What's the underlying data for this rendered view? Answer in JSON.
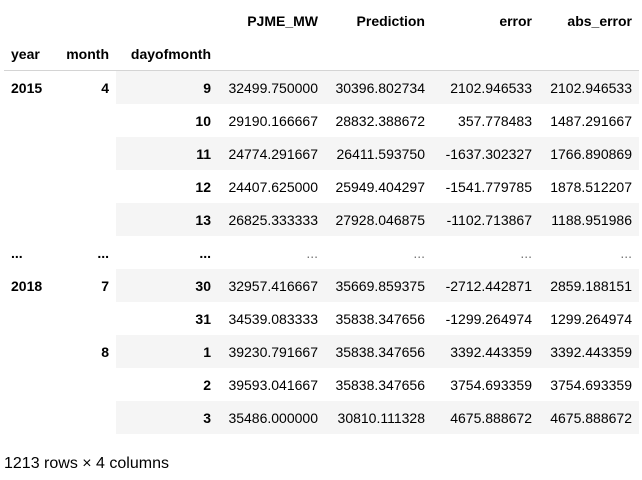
{
  "columns": [
    "PJME_MW",
    "Prediction",
    "error",
    "abs_error"
  ],
  "index_names": [
    "year",
    "month",
    "dayofmonth"
  ],
  "rows": [
    {
      "year": "2015",
      "month": "4",
      "day": "9",
      "values": [
        "32499.750000",
        "30396.802734",
        "2102.946533",
        "2102.946533"
      ]
    },
    {
      "year": "",
      "month": "",
      "day": "10",
      "values": [
        "29190.166667",
        "28832.388672",
        "357.778483",
        "1487.291667"
      ]
    },
    {
      "year": "",
      "month": "",
      "day": "11",
      "values": [
        "24774.291667",
        "26411.593750",
        "-1637.302327",
        "1766.890869"
      ]
    },
    {
      "year": "",
      "month": "",
      "day": "12",
      "values": [
        "24407.625000",
        "25949.404297",
        "-1541.779785",
        "1878.512207"
      ]
    },
    {
      "year": "",
      "month": "",
      "day": "13",
      "values": [
        "26825.333333",
        "27928.046875",
        "-1102.713867",
        "1188.951986"
      ]
    },
    {
      "year": "...",
      "month": "...",
      "day": "...",
      "values": [
        "...",
        "...",
        "...",
        "..."
      ]
    },
    {
      "year": "2018",
      "month": "7",
      "day": "30",
      "values": [
        "32957.416667",
        "35669.859375",
        "-2712.442871",
        "2859.188151"
      ]
    },
    {
      "year": "",
      "month": "",
      "day": "31",
      "values": [
        "34539.083333",
        "35838.347656",
        "-1299.264974",
        "1299.264974"
      ]
    },
    {
      "year": "",
      "month": "8",
      "day": "1",
      "values": [
        "39230.791667",
        "35838.347656",
        "3392.443359",
        "3392.443359"
      ]
    },
    {
      "year": "",
      "month": "",
      "day": "2",
      "values": [
        "39593.041667",
        "35838.347656",
        "3754.693359",
        "3754.693359"
      ]
    },
    {
      "year": "",
      "month": "",
      "day": "3",
      "values": [
        "35486.000000",
        "30810.111328",
        "4675.888672",
        "4675.888672"
      ]
    }
  ],
  "footer": "1213 rows × 4 columns"
}
